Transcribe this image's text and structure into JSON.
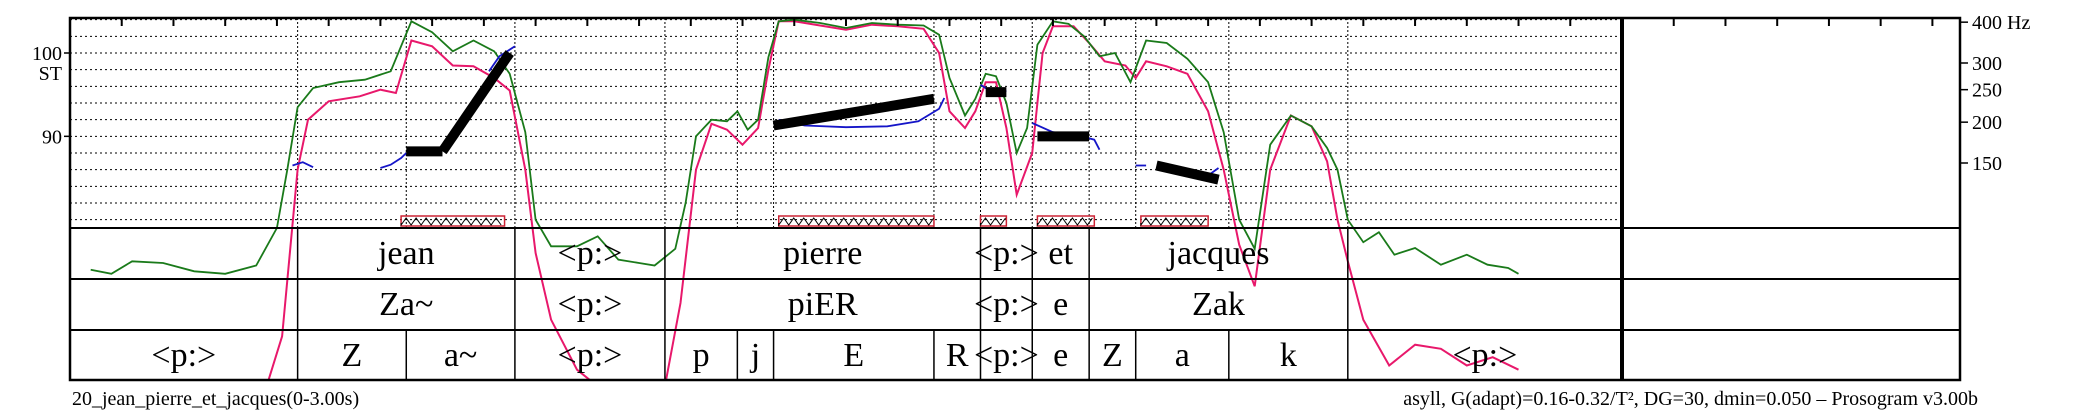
{
  "chart_data": {
    "type": "line",
    "title": "20_jean_pierre_et_jacques(0-3.00s)",
    "subtitle": "asyll, G(adapt)=0.16-0.32/T², DG=30, dmin=0.050 – Prosogram v3.00b",
    "x_range_s": [
      0,
      3.0
    ],
    "y_left": {
      "unit": "ST",
      "ticks": [
        90,
        100
      ],
      "range": [
        79,
        104.2
      ]
    },
    "y_right": {
      "unit": "Hz",
      "ticks": [
        {
          "label": "400 Hz",
          "st": 103.7
        },
        {
          "label": "300",
          "st": 98.8
        },
        {
          "label": "250",
          "st": 95.6
        },
        {
          "label": "200",
          "st": 91.7
        },
        {
          "label": "150",
          "st": 86.8
        }
      ]
    },
    "colors": {
      "intensity": "#1a7a1a",
      "intensity_band": "#e8186b",
      "pitch": "#1515c8",
      "stylization": "#000000",
      "nucleus_box": "#cc2233",
      "grid": "#000000"
    },
    "tiers": [
      {
        "name": "words",
        "items": [
          {
            "t0": 0.0,
            "t1": 0.44,
            "label": ""
          },
          {
            "t0": 0.44,
            "t1": 0.86,
            "label": "jean"
          },
          {
            "t0": 0.86,
            "t1": 1.15,
            "label": "<p:>"
          },
          {
            "t0": 1.15,
            "t1": 1.76,
            "label": "pierre"
          },
          {
            "t0": 1.76,
            "t1": 1.86,
            "label": "<p:>"
          },
          {
            "t0": 1.86,
            "t1": 1.97,
            "label": "et"
          },
          {
            "t0": 1.97,
            "t1": 2.47,
            "label": "jacques"
          },
          {
            "t0": 2.47,
            "t1": 3.0,
            "label": ""
          }
        ]
      },
      {
        "name": "syllables",
        "items": [
          {
            "t0": 0.0,
            "t1": 0.44,
            "label": ""
          },
          {
            "t0": 0.44,
            "t1": 0.86,
            "label": "Za~"
          },
          {
            "t0": 0.86,
            "t1": 1.15,
            "label": "<p:>"
          },
          {
            "t0": 1.15,
            "t1": 1.76,
            "label": "piER"
          },
          {
            "t0": 1.76,
            "t1": 1.86,
            "label": "<p:>"
          },
          {
            "t0": 1.86,
            "t1": 1.97,
            "label": "e"
          },
          {
            "t0": 1.97,
            "t1": 2.47,
            "label": "Zak"
          },
          {
            "t0": 2.47,
            "t1": 3.0,
            "label": ""
          }
        ]
      },
      {
        "name": "phones",
        "items": [
          {
            "t0": 0.0,
            "t1": 0.44,
            "label": "<p:>"
          },
          {
            "t0": 0.44,
            "t1": 0.65,
            "label": "Z"
          },
          {
            "t0": 0.65,
            "t1": 0.86,
            "label": "a~"
          },
          {
            "t0": 0.86,
            "t1": 1.15,
            "label": "<p:>"
          },
          {
            "t0": 1.15,
            "t1": 1.29,
            "label": "p"
          },
          {
            "t0": 1.29,
            "t1": 1.36,
            "label": "j"
          },
          {
            "t0": 1.36,
            "t1": 1.67,
            "label": "E"
          },
          {
            "t0": 1.67,
            "t1": 1.76,
            "label": "R"
          },
          {
            "t0": 1.76,
            "t1": 1.86,
            "label": "<p:>"
          },
          {
            "t0": 1.86,
            "t1": 1.97,
            "label": "e"
          },
          {
            "t0": 1.97,
            "t1": 2.06,
            "label": "Z"
          },
          {
            "t0": 2.06,
            "t1": 2.24,
            "label": "a"
          },
          {
            "t0": 2.24,
            "t1": 2.47,
            "label": "k"
          },
          {
            "t0": 2.47,
            "t1": 3.0,
            "label": "<p:>"
          }
        ]
      }
    ],
    "stylization_segments": [
      {
        "t0": 0.65,
        "st0": 88.2,
        "t1": 0.72,
        "st1": 88.2
      },
      {
        "t0": 0.72,
        "st0": 88.2,
        "t1": 0.85,
        "st1": 100.0
      },
      {
        "t0": 1.36,
        "st0": 91.3,
        "t1": 1.67,
        "st1": 94.5
      },
      {
        "t0": 1.77,
        "st0": 95.3,
        "t1": 1.81,
        "st1": 95.3
      },
      {
        "t0": 1.87,
        "st0": 90.0,
        "t1": 1.97,
        "st1": 90.0
      },
      {
        "t0": 2.1,
        "st0": 86.5,
        "t1": 2.22,
        "st1": 84.8
      }
    ],
    "nuclei": [
      {
        "t0": 0.64,
        "t1": 0.84
      },
      {
        "t0": 1.37,
        "t1": 1.67
      },
      {
        "t0": 1.76,
        "t1": 1.81
      },
      {
        "t0": 1.87,
        "t1": 1.98
      },
      {
        "t0": 2.07,
        "t1": 2.2
      }
    ],
    "pitch_segments": [
      [
        [
          0.43,
          86.5
        ],
        [
          0.45,
          86.9
        ],
        [
          0.47,
          86.3
        ]
      ],
      [
        [
          0.6,
          86.2
        ],
        [
          0.62,
          86.6
        ],
        [
          0.64,
          87.4
        ],
        [
          0.65,
          88.0
        ]
      ],
      [
        [
          0.81,
          97.8
        ],
        [
          0.83,
          99.6
        ],
        [
          0.86,
          100.8
        ]
      ],
      [
        [
          1.37,
          92.0
        ],
        [
          1.42,
          91.3
        ],
        [
          1.5,
          91.1
        ],
        [
          1.58,
          91.2
        ],
        [
          1.64,
          91.8
        ],
        [
          1.68,
          93.3
        ],
        [
          1.69,
          94.6
        ]
      ],
      [
        [
          1.76,
          96.2
        ],
        [
          1.79,
          95.0
        ],
        [
          1.81,
          95.5
        ]
      ],
      [
        [
          1.86,
          91.6
        ],
        [
          1.9,
          90.5
        ],
        [
          1.95,
          90.1
        ],
        [
          1.98,
          89.6
        ],
        [
          1.99,
          88.4
        ]
      ],
      [
        [
          2.06,
          86.5
        ],
        [
          2.08,
          86.5
        ]
      ],
      [
        [
          2.16,
          86.0
        ],
        [
          2.2,
          85.3
        ],
        [
          2.22,
          86.2
        ]
      ]
    ],
    "intensity_curve": [
      [
        0.04,
        74
      ],
      [
        0.08,
        73.5
      ],
      [
        0.12,
        75
      ],
      [
        0.18,
        74.8
      ],
      [
        0.24,
        73.8
      ],
      [
        0.3,
        73.5
      ],
      [
        0.36,
        74.5
      ],
      [
        0.4,
        79
      ],
      [
        0.42,
        86
      ],
      [
        0.44,
        93.5
      ],
      [
        0.47,
        95.8
      ],
      [
        0.52,
        96.5
      ],
      [
        0.57,
        96.8
      ],
      [
        0.62,
        97.8
      ],
      [
        0.66,
        103.8
      ],
      [
        0.7,
        102.5
      ],
      [
        0.74,
        100.2
      ],
      [
        0.78,
        101.5
      ],
      [
        0.82,
        100.2
      ],
      [
        0.85,
        97.5
      ],
      [
        0.88,
        90.5
      ],
      [
        0.9,
        80
      ],
      [
        0.93,
        76.8
      ],
      [
        0.98,
        76.8
      ],
      [
        1.02,
        78
      ],
      [
        1.06,
        75.2
      ],
      [
        1.1,
        74.8
      ],
      [
        1.13,
        74.5
      ],
      [
        1.17,
        76.5
      ],
      [
        1.19,
        82
      ],
      [
        1.21,
        90
      ],
      [
        1.24,
        92
      ],
      [
        1.27,
        91.8
      ],
      [
        1.29,
        93
      ],
      [
        1.31,
        90.8
      ],
      [
        1.33,
        92
      ],
      [
        1.35,
        99.5
      ],
      [
        1.37,
        103.8
      ],
      [
        1.4,
        104.0
      ],
      [
        1.45,
        103.6
      ],
      [
        1.5,
        103.0
      ],
      [
        1.55,
        103.6
      ],
      [
        1.6,
        103.4
      ],
      [
        1.65,
        103.3
      ],
      [
        1.68,
        102.2
      ],
      [
        1.7,
        97
      ],
      [
        1.73,
        92.5
      ],
      [
        1.75,
        94.5
      ],
      [
        1.77,
        97.5
      ],
      [
        1.79,
        97.2
      ],
      [
        1.81,
        94
      ],
      [
        1.83,
        88
      ],
      [
        1.85,
        91
      ],
      [
        1.87,
        101
      ],
      [
        1.9,
        103.8
      ],
      [
        1.93,
        103.5
      ],
      [
        1.96,
        102.0
      ],
      [
        1.99,
        99.6
      ],
      [
        2.02,
        100.0
      ],
      [
        2.05,
        96.5
      ],
      [
        2.08,
        101.5
      ],
      [
        2.12,
        101.2
      ],
      [
        2.16,
        99.3
      ],
      [
        2.2,
        96.5
      ],
      [
        2.23,
        90.5
      ],
      [
        2.26,
        80
      ],
      [
        2.29,
        76.5
      ],
      [
        2.32,
        89
      ],
      [
        2.36,
        92.5
      ],
      [
        2.4,
        91.2
      ],
      [
        2.43,
        88.6
      ],
      [
        2.45,
        86
      ],
      [
        2.47,
        80
      ],
      [
        2.5,
        77.3
      ],
      [
        2.53,
        78.5
      ],
      [
        2.56,
        75.8
      ],
      [
        2.6,
        76.6
      ],
      [
        2.65,
        74.6
      ],
      [
        2.7,
        75.8
      ],
      [
        2.74,
        74.6
      ],
      [
        2.78,
        74.2
      ],
      [
        2.8,
        73.5
      ]
    ],
    "intensity_band_curve": [
      [
        0.38,
        60
      ],
      [
        0.41,
        66
      ],
      [
        0.44,
        86
      ],
      [
        0.46,
        92
      ],
      [
        0.5,
        94.2
      ],
      [
        0.56,
        94.8
      ],
      [
        0.6,
        95.6
      ],
      [
        0.63,
        95.2
      ],
      [
        0.66,
        101.5
      ],
      [
        0.7,
        100.8
      ],
      [
        0.74,
        98.5
      ],
      [
        0.78,
        98.4
      ],
      [
        0.82,
        97.0
      ],
      [
        0.85,
        95.5
      ],
      [
        0.88,
        86
      ],
      [
        0.9,
        76
      ],
      [
        0.93,
        68
      ],
      [
        0.98,
        62
      ],
      [
        1.02,
        60
      ],
      [
        1.1,
        60
      ],
      [
        1.15,
        60
      ],
      [
        1.18,
        70
      ],
      [
        1.21,
        86
      ],
      [
        1.24,
        91.5
      ],
      [
        1.27,
        90.8
      ],
      [
        1.3,
        89
      ],
      [
        1.33,
        91
      ],
      [
        1.35,
        98
      ],
      [
        1.37,
        103.8
      ],
      [
        1.4,
        103.8
      ],
      [
        1.45,
        103.3
      ],
      [
        1.5,
        102.8
      ],
      [
        1.55,
        103.4
      ],
      [
        1.6,
        103.2
      ],
      [
        1.65,
        102.9
      ],
      [
        1.68,
        100
      ],
      [
        1.7,
        93
      ],
      [
        1.73,
        91
      ],
      [
        1.75,
        93
      ],
      [
        1.77,
        96.5
      ],
      [
        1.79,
        96.5
      ],
      [
        1.81,
        91
      ],
      [
        1.83,
        83
      ],
      [
        1.86,
        88
      ],
      [
        1.88,
        100
      ],
      [
        1.9,
        103.2
      ],
      [
        1.94,
        103.2
      ],
      [
        1.97,
        101.2
      ],
      [
        2.0,
        99.0
      ],
      [
        2.04,
        98.5
      ],
      [
        2.06,
        97
      ],
      [
        2.08,
        99
      ],
      [
        2.12,
        98.4
      ],
      [
        2.16,
        97.5
      ],
      [
        2.2,
        93
      ],
      [
        2.23,
        86
      ],
      [
        2.26,
        77
      ],
      [
        2.29,
        72
      ],
      [
        2.32,
        86
      ],
      [
        2.36,
        92.5
      ],
      [
        2.4,
        91.2
      ],
      [
        2.43,
        87
      ],
      [
        2.45,
        80
      ],
      [
        2.47,
        75
      ],
      [
        2.5,
        68
      ],
      [
        2.55,
        62.5
      ],
      [
        2.6,
        65
      ],
      [
        2.65,
        64.5
      ],
      [
        2.7,
        62.5
      ],
      [
        2.75,
        63.5
      ],
      [
        2.8,
        62
      ]
    ]
  }
}
